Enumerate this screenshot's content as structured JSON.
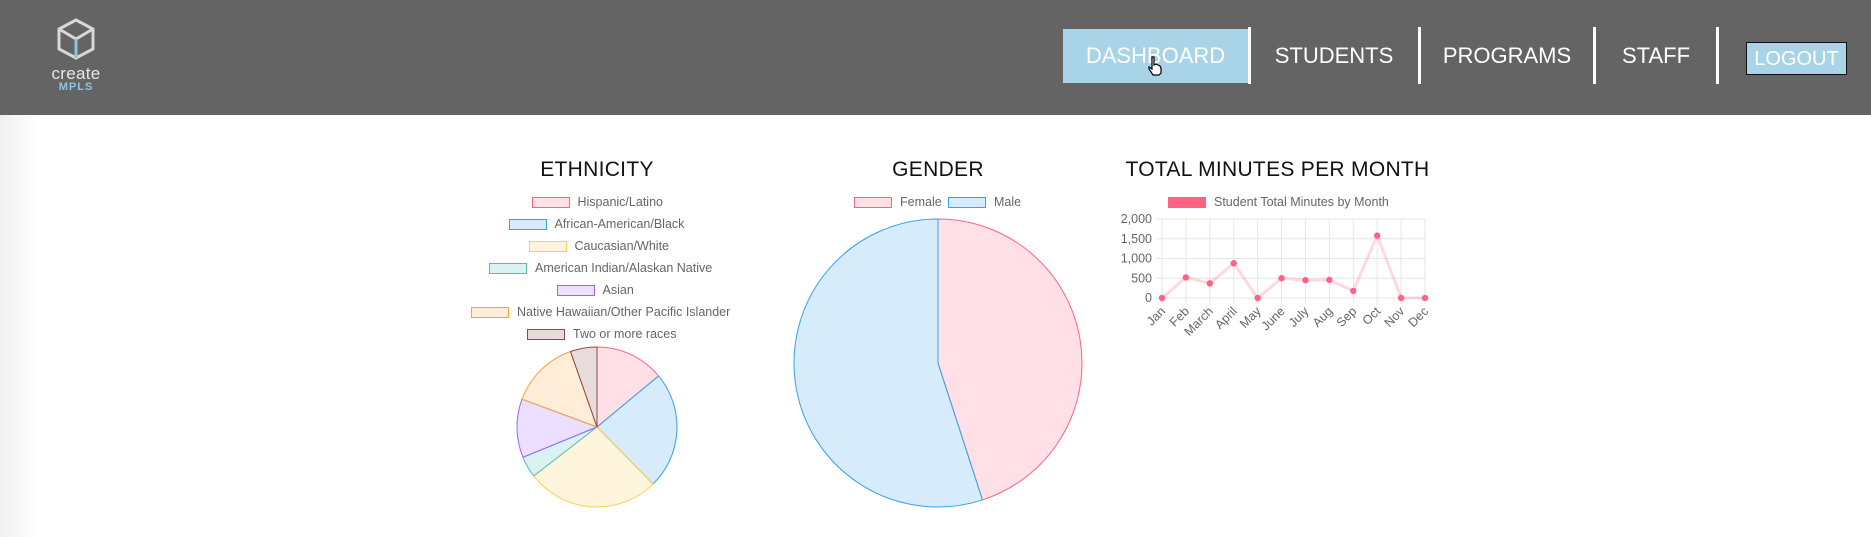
{
  "nav": {
    "logo": {
      "line1": "create",
      "line2": "MPLS"
    },
    "items": [
      {
        "label": "DASHBOARD",
        "active": true
      },
      {
        "label": "STUDENTS",
        "active": false
      },
      {
        "label": "PROGRAMS",
        "active": false
      },
      {
        "label": "STAFF",
        "active": false
      }
    ],
    "logout_label": "LOGOUT"
  },
  "colors": {
    "navbar": "#646464",
    "active_tab": "#a9d4e8",
    "accent_pink": "#ff6384"
  },
  "chart_data": [
    {
      "type": "pie",
      "title": "ETHNICITY",
      "categories": [
        "Hispanic/Latino",
        "African-American/Black",
        "Caucasian/White",
        "American Indian/Alaskan Native",
        "Asian",
        "Native Hawaiian/Other Pacific Islander",
        "Two or more races"
      ],
      "values": [
        13,
        22,
        25,
        4,
        11,
        13,
        5
      ],
      "colors": [
        "#ff6384",
        "#36a2eb",
        "#ffce56",
        "#4bc0c0",
        "#9966ff",
        "#ff9f40",
        "#8b4a4a"
      ],
      "legend": "top"
    },
    {
      "type": "pie",
      "title": "GENDER",
      "categories": [
        "Female",
        "Male"
      ],
      "values": [
        45,
        55
      ],
      "colors": [
        "#ff6384",
        "#36a2eb"
      ],
      "legend": "top"
    },
    {
      "type": "line",
      "title": "TOTAL MINUTES PER MONTH",
      "categories": [
        "Jan",
        "Feb",
        "March",
        "April",
        "May",
        "June",
        "July",
        "Aug",
        "Sep",
        "Oct",
        "Nov",
        "Dec"
      ],
      "series": [
        {
          "name": "Student Total Minutes by Month",
          "values": [
            0,
            520,
            370,
            880,
            0,
            500,
            450,
            460,
            180,
            1580,
            0,
            0
          ]
        }
      ],
      "ylim": [
        0,
        2000
      ],
      "yticks": [
        "2,000",
        "1,500",
        "1,000",
        "500",
        "0"
      ],
      "grid": true,
      "legend": "top"
    }
  ]
}
